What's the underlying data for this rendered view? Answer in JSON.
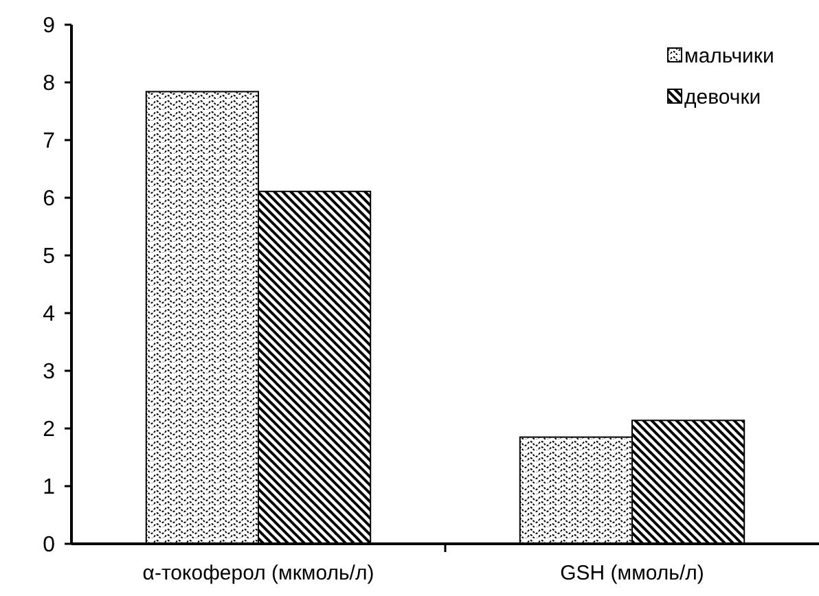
{
  "chart_data": {
    "type": "bar",
    "categories": [
      "α-токоферол (мкмоль/л)",
      "GSH (ммоль/л)"
    ],
    "series": [
      {
        "name": "мальчики",
        "color": "#000000",
        "values": [
          7.84,
          1.85
        ]
      },
      {
        "name": "девочки",
        "color": "#000000",
        "values": [
          6.11,
          2.14
        ]
      }
    ],
    "ylim": [
      0,
      9
    ],
    "yticks": [
      0,
      1,
      2,
      3,
      4,
      5,
      6,
      7,
      8,
      9
    ],
    "legend": "top right",
    "grid": false
  }
}
